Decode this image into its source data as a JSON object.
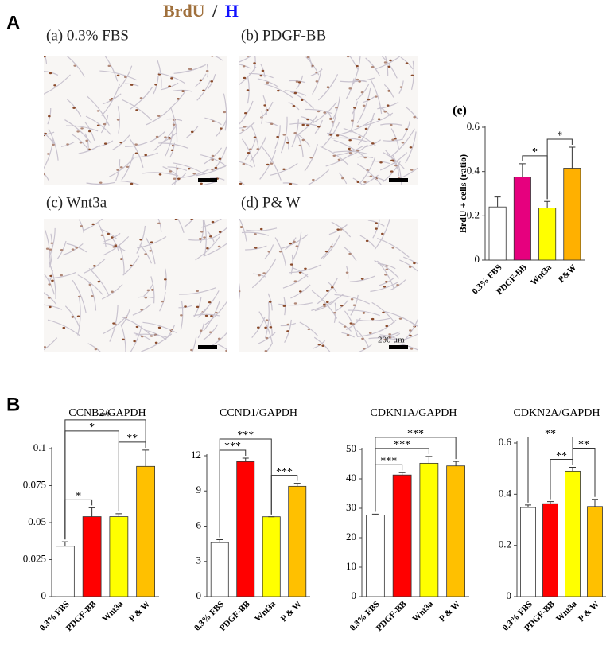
{
  "figure": {
    "panel_a": "A",
    "panel_b": "B",
    "stain": {
      "brdu": "BrdU",
      "slash": "/",
      "h": "H"
    },
    "micrographs": [
      "(a) 0.3% FBS",
      "(b) PDGF-BB",
      "(c) Wnt3a",
      "(d) P& W"
    ],
    "scale_bar": "200 μm"
  },
  "chart_data": [
    {
      "type": "bar",
      "title": "(e)",
      "ylabel": "BrdU + cells (ratio)",
      "categories": [
        "0.3% FBS",
        "PDGF-BB",
        "Wnt3a",
        "P&W"
      ],
      "values": [
        0.24,
        0.375,
        0.235,
        0.415
      ],
      "errors": [
        0.045,
        0.06,
        0.03,
        0.095
      ],
      "colors": [
        "#ffffff",
        "#e6007e",
        "#ffff00",
        "#ffb000"
      ],
      "ylim": [
        0,
        0.6
      ],
      "yticks": [
        0,
        0.2,
        0.4,
        0.6
      ],
      "annotations": [
        {
          "text": "*",
          "from": 1,
          "to": 2
        },
        {
          "text": "*",
          "from": 2,
          "to": 3
        }
      ]
    },
    {
      "type": "bar",
      "title": "CCNB2/GAPDH",
      "categories": [
        "0.3% FBS",
        "PDGF-BB",
        "Wnt3a",
        "P & W"
      ],
      "values": [
        0.034,
        0.054,
        0.054,
        0.088
      ],
      "errors": [
        0.003,
        0.006,
        0.002,
        0.011
      ],
      "colors": [
        "#ffffff",
        "#ff0000",
        "#ffff00",
        "#ffc000"
      ],
      "ylim": [
        0,
        0.1
      ],
      "yticks": [
        0,
        0.025,
        0.05,
        0.075,
        0.1
      ],
      "annotations": [
        {
          "text": "*",
          "from": 0,
          "to": 1
        },
        {
          "text": "*",
          "from": 0,
          "to": 2
        },
        {
          "text": "**",
          "from": 2,
          "to": 3
        },
        {
          "text": "**",
          "from": 0,
          "to": 3
        }
      ]
    },
    {
      "type": "bar",
      "title": "CCND1/GAPDH",
      "categories": [
        "0.3% FBS",
        "PDGF-BB",
        "Wnt3a",
        "P & W"
      ],
      "values": [
        4.6,
        11.5,
        6.8,
        9.4
      ],
      "errors": [
        0.25,
        0.3,
        0,
        0.25
      ],
      "colors": [
        "#ffffff",
        "#ff0000",
        "#ffff00",
        "#ffc000"
      ],
      "ylim": [
        0,
        12
      ],
      "yticks": [
        0,
        3,
        6,
        9,
        12
      ],
      "annotations": [
        {
          "text": "***",
          "from": 0,
          "to": 1
        },
        {
          "text": "***",
          "from": 2,
          "to": 3
        },
        {
          "text": "***",
          "from": 0,
          "to": 2
        }
      ]
    },
    {
      "type": "bar",
      "title": "CDKN1A/GAPDH",
      "categories": [
        "0.3% FBS",
        "PDGF-BB",
        "Wnt3a",
        "P & W"
      ],
      "values": [
        27.7,
        41.3,
        45.3,
        44.4
      ],
      "errors": [
        0.3,
        0.8,
        2.3,
        1.5
      ],
      "colors": [
        "#ffffff",
        "#ff0000",
        "#ffff00",
        "#ffc000"
      ],
      "ylim": [
        0,
        50
      ],
      "yticks": [
        0,
        10,
        20,
        30,
        40,
        50
      ],
      "annotations": [
        {
          "text": "***",
          "from": 0,
          "to": 1
        },
        {
          "text": "***",
          "from": 0,
          "to": 2
        },
        {
          "text": "***",
          "from": 0,
          "to": 3
        }
      ]
    },
    {
      "type": "bar",
      "title": "CDKN2A/GAPDH",
      "categories": [
        "0.3% FBS",
        "PDGF-BB",
        "Wnt3a",
        "P & W"
      ],
      "values": [
        0.348,
        0.363,
        0.49,
        0.352
      ],
      "errors": [
        0.01,
        0.008,
        0.015,
        0.028
      ],
      "colors": [
        "#ffffff",
        "#ff0000",
        "#ffff00",
        "#ffc000"
      ],
      "ylim": [
        0,
        0.6
      ],
      "yticks": [
        0,
        0.2,
        0.4,
        0.6
      ],
      "annotations": [
        {
          "text": "**",
          "from": 1,
          "to": 2
        },
        {
          "text": "**",
          "from": 2,
          "to": 3
        },
        {
          "text": "**",
          "from": 0,
          "to": 2
        }
      ]
    }
  ]
}
